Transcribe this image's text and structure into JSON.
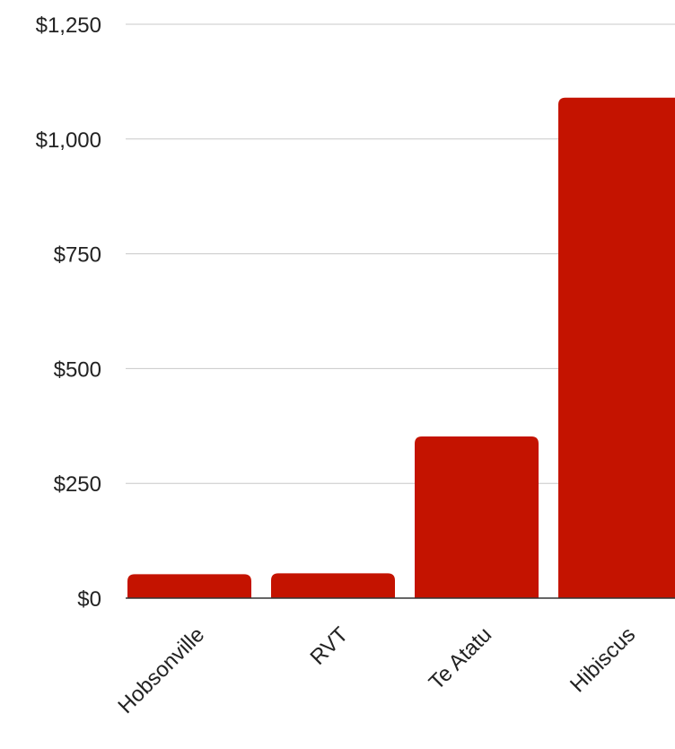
{
  "chart_data": {
    "type": "bar",
    "title": "",
    "xlabel": "",
    "ylabel": "",
    "categories": [
      "Hobsonville",
      "RVT",
      "Te Atatu",
      "Hibiscus"
    ],
    "values": [
      52,
      54,
      352,
      1090
    ],
    "ylim": [
      0,
      1250
    ],
    "yticks": [
      0,
      250,
      500,
      750,
      1000,
      1250
    ],
    "ytick_labels": [
      "$0",
      "$250",
      "$500",
      "$750",
      "$1,000",
      "$1,250"
    ],
    "grid": true,
    "legend": "none",
    "colors": {
      "bar": "#c41300",
      "grid": "#c8c8c8",
      "axis": "#333333"
    }
  }
}
